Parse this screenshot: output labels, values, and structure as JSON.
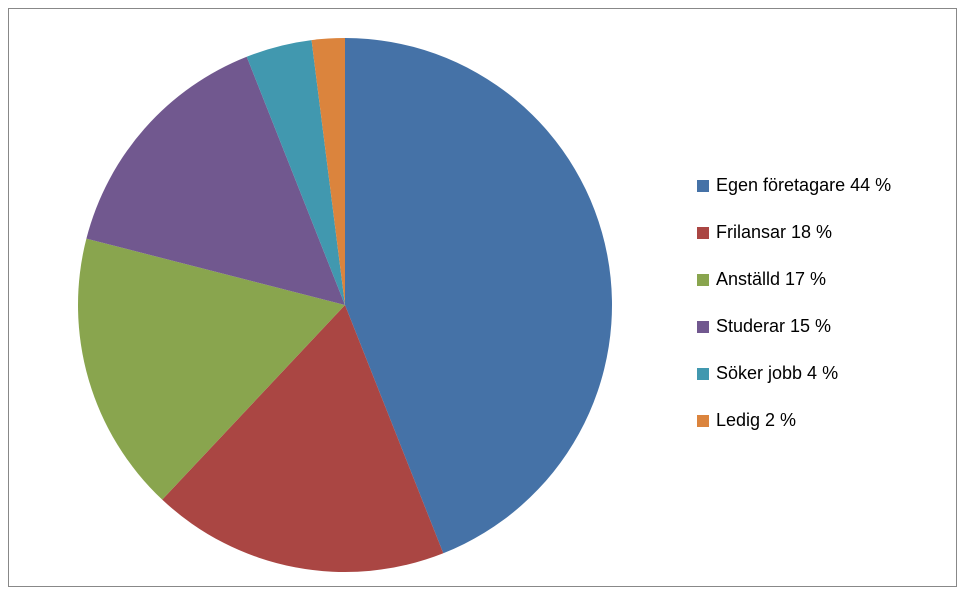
{
  "chart_data": {
    "type": "pie",
    "categories": [
      "Egen företagare 44 %",
      "Frilansar 18 %",
      "Anställd 17 %",
      "Studerar 15 %",
      "Söker jobb 4 %",
      "Ledig 2 %"
    ],
    "values": [
      44,
      18,
      17,
      15,
      4,
      2
    ],
    "colors": [
      "#4572a7",
      "#aa4643",
      "#89a54e",
      "#71588f",
      "#4198af",
      "#db843d"
    ],
    "legend": "right"
  }
}
